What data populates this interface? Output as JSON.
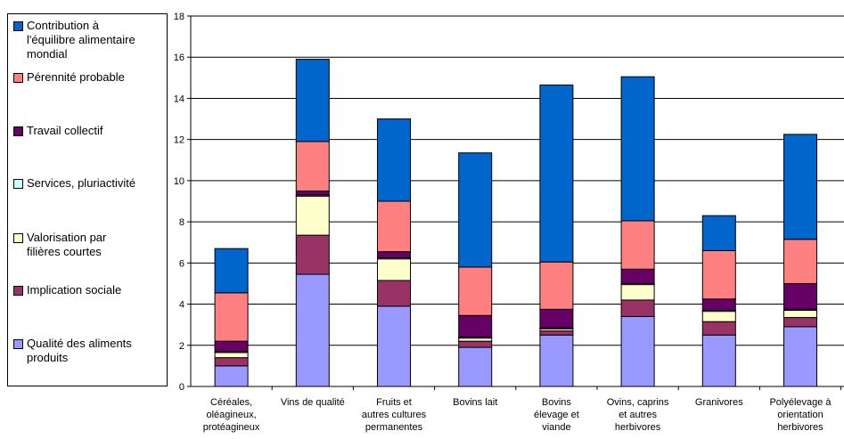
{
  "chart_data": {
    "type": "bar",
    "stacked": true,
    "categories": [
      [
        "Céréales,",
        "oléagineux,",
        "protéagineux"
      ],
      [
        "Vins de qualité"
      ],
      [
        "Fruits et",
        "autres cultures",
        "permanentes"
      ],
      [
        "Bovins lait"
      ],
      [
        "Bovins",
        "élevage et",
        "viande"
      ],
      [
        "Ovins, caprins",
        "et autres",
        "herbivores"
      ],
      [
        "Granivores"
      ],
      [
        "Polyélevage à",
        "orientation",
        "herbivores"
      ]
    ],
    "series": [
      {
        "name": "Qualité des aliments produits",
        "color": "#9999ff",
        "values": [
          1.0,
          5.45,
          3.9,
          1.9,
          2.5,
          3.4,
          2.5,
          2.9
        ]
      },
      {
        "name": "Implication sociale",
        "color": "#993366",
        "values": [
          0.4,
          1.9,
          1.25,
          0.3,
          0.2,
          0.8,
          0.65,
          0.45
        ]
      },
      {
        "name": "Valorisation par filières courtes",
        "color": "#ffffcc",
        "values": [
          0.25,
          1.9,
          1.05,
          0.15,
          0.1,
          0.75,
          0.5,
          0.35
        ]
      },
      {
        "name": "Services, pluriactivité",
        "color": "#ccffff",
        "values": [
          0.05,
          0.05,
          0.05,
          0.05,
          0.05,
          0.05,
          0.05,
          0.05
        ]
      },
      {
        "name": "Travail collectif",
        "color": "#660066",
        "values": [
          0.5,
          0.2,
          0.3,
          1.05,
          0.9,
          0.7,
          0.55,
          1.25
        ]
      },
      {
        "name": "Pérennité probable",
        "color": "#ff8080",
        "values": [
          2.35,
          2.4,
          2.45,
          2.35,
          2.3,
          2.35,
          2.35,
          2.15
        ]
      },
      {
        "name": "Contribution à l'équilibre alimentaire mondial",
        "color": "#0066cc",
        "values": [
          2.15,
          4.0,
          4.0,
          5.55,
          8.6,
          7.0,
          1.7,
          5.1
        ]
      }
    ],
    "ylim": [
      0,
      18
    ],
    "yticks": [
      0,
      2,
      4,
      6,
      8,
      10,
      12,
      14,
      16,
      18
    ],
    "grid": true,
    "legend_position": "left"
  },
  "legend": [
    {
      "lines": [
        "Contribution à",
        "l'équilibre alimentaire",
        "mondial"
      ],
      "color": "#0066cc"
    },
    {
      "lines": [
        "Pérennité probable"
      ],
      "color": "#ff8080"
    },
    {
      "lines": [
        "Travail collectif"
      ],
      "color": "#660066"
    },
    {
      "lines": [
        "Services, pluriactivité"
      ],
      "color": "#ccffff"
    },
    {
      "lines": [
        "Valorisation par",
        "filières courtes"
      ],
      "color": "#ffffcc"
    },
    {
      "lines": [
        "Implication sociale"
      ],
      "color": "#993366"
    },
    {
      "lines": [
        "Qualité des aliments",
        "produits"
      ],
      "color": "#9999ff"
    }
  ]
}
